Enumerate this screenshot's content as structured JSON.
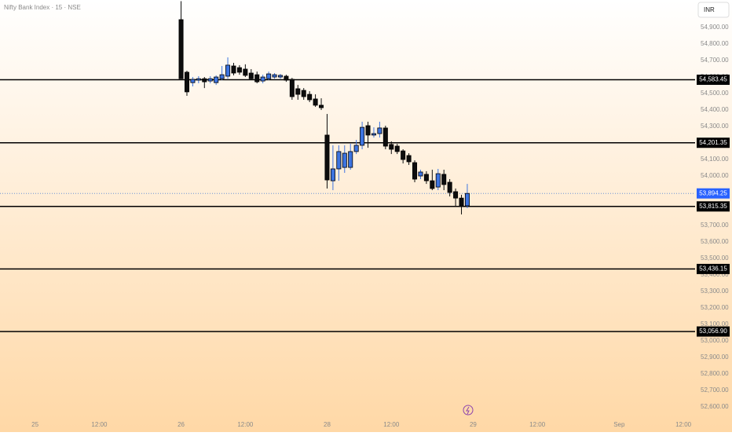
{
  "chart_data": {
    "type": "candlestick",
    "title": "Nifty Bank Index · 15 · NSE",
    "currency": "INR",
    "x": [
      0,
      1,
      2,
      3,
      4,
      5,
      6,
      7,
      8,
      9,
      10,
      11,
      12,
      13,
      14,
      15,
      16,
      17,
      18,
      19,
      20,
      21,
      22,
      23,
      24,
      25,
      26,
      27,
      28,
      29,
      30,
      31,
      32,
      33,
      34,
      35,
      36,
      37,
      38,
      39,
      40,
      41,
      42,
      43,
      44,
      45,
      46,
      47,
      48,
      49
    ],
    "open": [
      54948,
      54629,
      54566,
      54581,
      54590,
      54576,
      54566,
      54590,
      54605,
      54667,
      54657,
      54648,
      54624,
      54614,
      54576,
      54590,
      54600,
      54600,
      54605,
      54586,
      54529,
      54519,
      54495,
      54467,
      54429,
      54248,
      53971,
      54043,
      54052,
      54052,
      54148,
      54186,
      54305,
      54248,
      54257,
      54291,
      54191,
      54181,
      54152,
      54124,
      54081,
      54000,
      54010,
      53971,
      53933,
      54010,
      53962,
      53905,
      53866,
      53819
    ],
    "high": [
      55060,
      54638,
      54600,
      54605,
      54600,
      54605,
      54610,
      54667,
      54719,
      54686,
      54672,
      54677,
      54648,
      54633,
      54614,
      54633,
      54624,
      54619,
      54614,
      54595,
      54552,
      54533,
      54514,
      54495,
      54471,
      54376,
      54186,
      54186,
      54186,
      54195,
      54219,
      54329,
      54329,
      54295,
      54329,
      54305,
      54210,
      54195,
      54162,
      54138,
      54095,
      54038,
      54029,
      54038,
      54043,
      54038,
      53981,
      53924,
      53886,
      53952
    ],
    "low": [
      54590,
      54486,
      54543,
      54562,
      54533,
      54562,
      54552,
      54581,
      54590,
      54610,
      54614,
      54600,
      54581,
      54562,
      54562,
      54581,
      54590,
      54590,
      54571,
      54462,
      54462,
      54462,
      54448,
      54419,
      54400,
      53924,
      53914,
      53971,
      54019,
      54038,
      54133,
      54162,
      54171,
      54233,
      54233,
      54162,
      54133,
      54133,
      54076,
      54067,
      53962,
      53981,
      53952,
      53914,
      53914,
      53914,
      53876,
      53819,
      53767,
      53805
    ],
    "close": [
      54590,
      54510,
      54586,
      54590,
      54571,
      54590,
      54600,
      54614,
      54672,
      54624,
      54629,
      54610,
      54590,
      54571,
      54600,
      54619,
      54614,
      54610,
      54581,
      54481,
      54495,
      54481,
      54462,
      54429,
      54414,
      53976,
      54043,
      54148,
      54138,
      54148,
      54186,
      54295,
      54248,
      54257,
      54291,
      54181,
      54162,
      54148,
      54100,
      54086,
      53981,
      54024,
      53971,
      53924,
      54014,
      53948,
      53900,
      53866,
      53819,
      53894.25
    ],
    "up_color": "#3d74e0",
    "down_color": "#0d0d0d",
    "xlim": [
      -31,
      88
    ],
    "xticks": [
      {
        "value": -25,
        "label": "25"
      },
      {
        "value": -14,
        "label": "12:00"
      },
      {
        "value": 0,
        "label": "26"
      },
      {
        "value": 11,
        "label": "12:00"
      },
      {
        "value": 25,
        "label": "28"
      },
      {
        "value": 36,
        "label": "12:00"
      },
      {
        "value": 50,
        "label": "29"
      },
      {
        "value": 61,
        "label": "12:00"
      },
      {
        "value": 75,
        "label": "Sep"
      },
      {
        "value": 86,
        "label": "12:00"
      }
    ],
    "ylim": [
      52533,
      55067
    ],
    "yticks": [
      {
        "value": 52600,
        "label": "52,600.00"
      },
      {
        "value": 52700,
        "label": "52,700.00"
      },
      {
        "value": 52800,
        "label": "52,800.00"
      },
      {
        "value": 52900,
        "label": "52,900.00"
      },
      {
        "value": 53000,
        "label": "53,000.00"
      },
      {
        "value": 53100,
        "label": "53,100.00"
      },
      {
        "value": 53200,
        "label": "53,200.00"
      },
      {
        "value": 53300,
        "label": "53,300.00"
      },
      {
        "value": 53400,
        "label": "53,400.00"
      },
      {
        "value": 53500,
        "label": "53,500.00"
      },
      {
        "value": 53600,
        "label": "53,600.00"
      },
      {
        "value": 53700,
        "label": "53,700.00"
      },
      {
        "value": 53800,
        "label": "53,800.00"
      },
      {
        "value": 53900,
        "label": "53,900.00"
      },
      {
        "value": 54000,
        "label": "54,000.00"
      },
      {
        "value": 54100,
        "label": "54,100.00"
      },
      {
        "value": 54200,
        "label": "54,200.00"
      },
      {
        "value": 54300,
        "label": "54,300.00"
      },
      {
        "value": 54400,
        "label": "54,400.00"
      },
      {
        "value": 54500,
        "label": "54,500.00"
      },
      {
        "value": 54600,
        "label": "54,600.00"
      },
      {
        "value": 54700,
        "label": "54,700.00"
      },
      {
        "value": 54800,
        "label": "54,800.00"
      },
      {
        "value": 54900,
        "label": "54,900.00"
      }
    ],
    "levels": [
      {
        "value": 54583.45,
        "label": "54,583.45"
      },
      {
        "value": 54201.35,
        "label": "54,201.35"
      },
      {
        "value": 53815.35,
        "label": "53,815.35"
      },
      {
        "value": 53436.15,
        "label": "53,436.15"
      },
      {
        "value": 53056.9,
        "label": "53,056.90"
      }
    ],
    "last_price": {
      "value": 53894.25,
      "label": "53,894.25"
    }
  }
}
